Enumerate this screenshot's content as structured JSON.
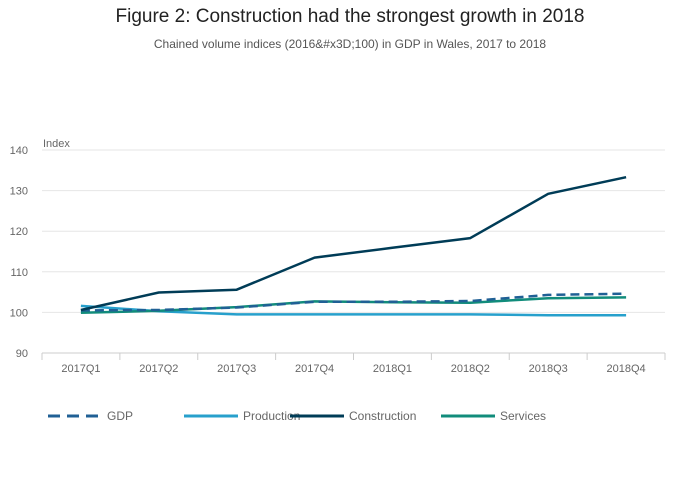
{
  "chart_data": {
    "type": "line",
    "title": "Figure 2: Construction had the strongest growth in 2018",
    "subtitle": "Chained volume indices (2016&#x3D;100) in GDP in Wales, 2017 to 2018",
    "ylabel": "Index",
    "xlabel": "",
    "ylim": [
      90,
      140
    ],
    "yticks": [
      90,
      100,
      110,
      120,
      130,
      140
    ],
    "grid": true,
    "legend_position": "bottom-left",
    "categories": [
      "2017Q1",
      "2017Q2",
      "2017Q3",
      "2017Q4",
      "2018Q1",
      "2018Q2",
      "2018Q3",
      "2018Q4"
    ],
    "series": [
      {
        "name": "GDP",
        "color": "#206095",
        "dashed": true,
        "values": [
          100.5,
          100.6,
          101.2,
          102.6,
          102.6,
          102.8,
          104.3,
          104.6
        ]
      },
      {
        "name": "Production",
        "color": "#27a0cc",
        "dashed": false,
        "values": [
          101.6,
          100.3,
          99.5,
          99.5,
          99.5,
          99.5,
          99.3,
          99.3
        ]
      },
      {
        "name": "Construction",
        "color": "#003c57",
        "dashed": false,
        "values": [
          100.6,
          104.9,
          105.6,
          113.5,
          115.9,
          118.3,
          129.2,
          133.3
        ]
      },
      {
        "name": "Services",
        "color": "#118c7b",
        "dashed": false,
        "values": [
          99.9,
          100.4,
          101.3,
          102.7,
          102.5,
          102.4,
          103.5,
          103.7
        ]
      }
    ]
  }
}
